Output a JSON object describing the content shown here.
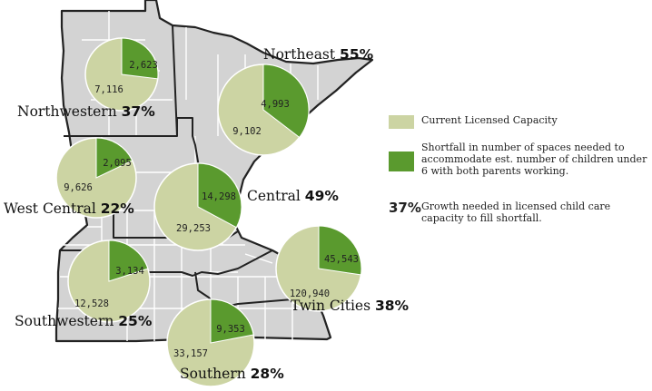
{
  "colors": {
    "map_fill": "#d3d3d3",
    "border": "#222222",
    "capacity": "#ccd4a3",
    "shortfall": "#5a9a2e"
  },
  "regions": [
    {
      "name": "Northwestern",
      "pct": "37%",
      "capacity": 7116,
      "capacity_label": "7,116",
      "shortfall": 2623,
      "shortfall_label": "2,623"
    },
    {
      "name": "Northeast",
      "pct": "55%",
      "capacity": 9102,
      "capacity_label": "9,102",
      "shortfall": 4993,
      "shortfall_label": "4,993"
    },
    {
      "name": "West Central",
      "pct": "22%",
      "capacity": 9626,
      "capacity_label": "9,626",
      "shortfall": 2095,
      "shortfall_label": "2,095"
    },
    {
      "name": "Central",
      "pct": "49%",
      "capacity": 29253,
      "capacity_label": "29,253",
      "shortfall": 14298,
      "shortfall_label": "14,298"
    },
    {
      "name": "Twin Cities",
      "pct": "38%",
      "capacity": 120940,
      "capacity_label": "120,940",
      "shortfall": 45543,
      "shortfall_label": "45,543"
    },
    {
      "name": "Southwestern",
      "pct": "25%",
      "capacity": 12528,
      "capacity_label": "12,528",
      "shortfall": 3134,
      "shortfall_label": "3,134"
    },
    {
      "name": "Southern",
      "pct": "28%",
      "capacity": 33157,
      "capacity_label": "33,157",
      "shortfall": 9353,
      "shortfall_label": "9,353"
    }
  ],
  "legend": {
    "capacity": "Current Licensed Capacity",
    "shortfall": "Shortfall in number of spaces needed to accommodate est. number of children under 6 with both parents working.",
    "pct_symbol": "37%",
    "growth": "Growth needed in licensed child care capacity to fill shortfall."
  }
}
